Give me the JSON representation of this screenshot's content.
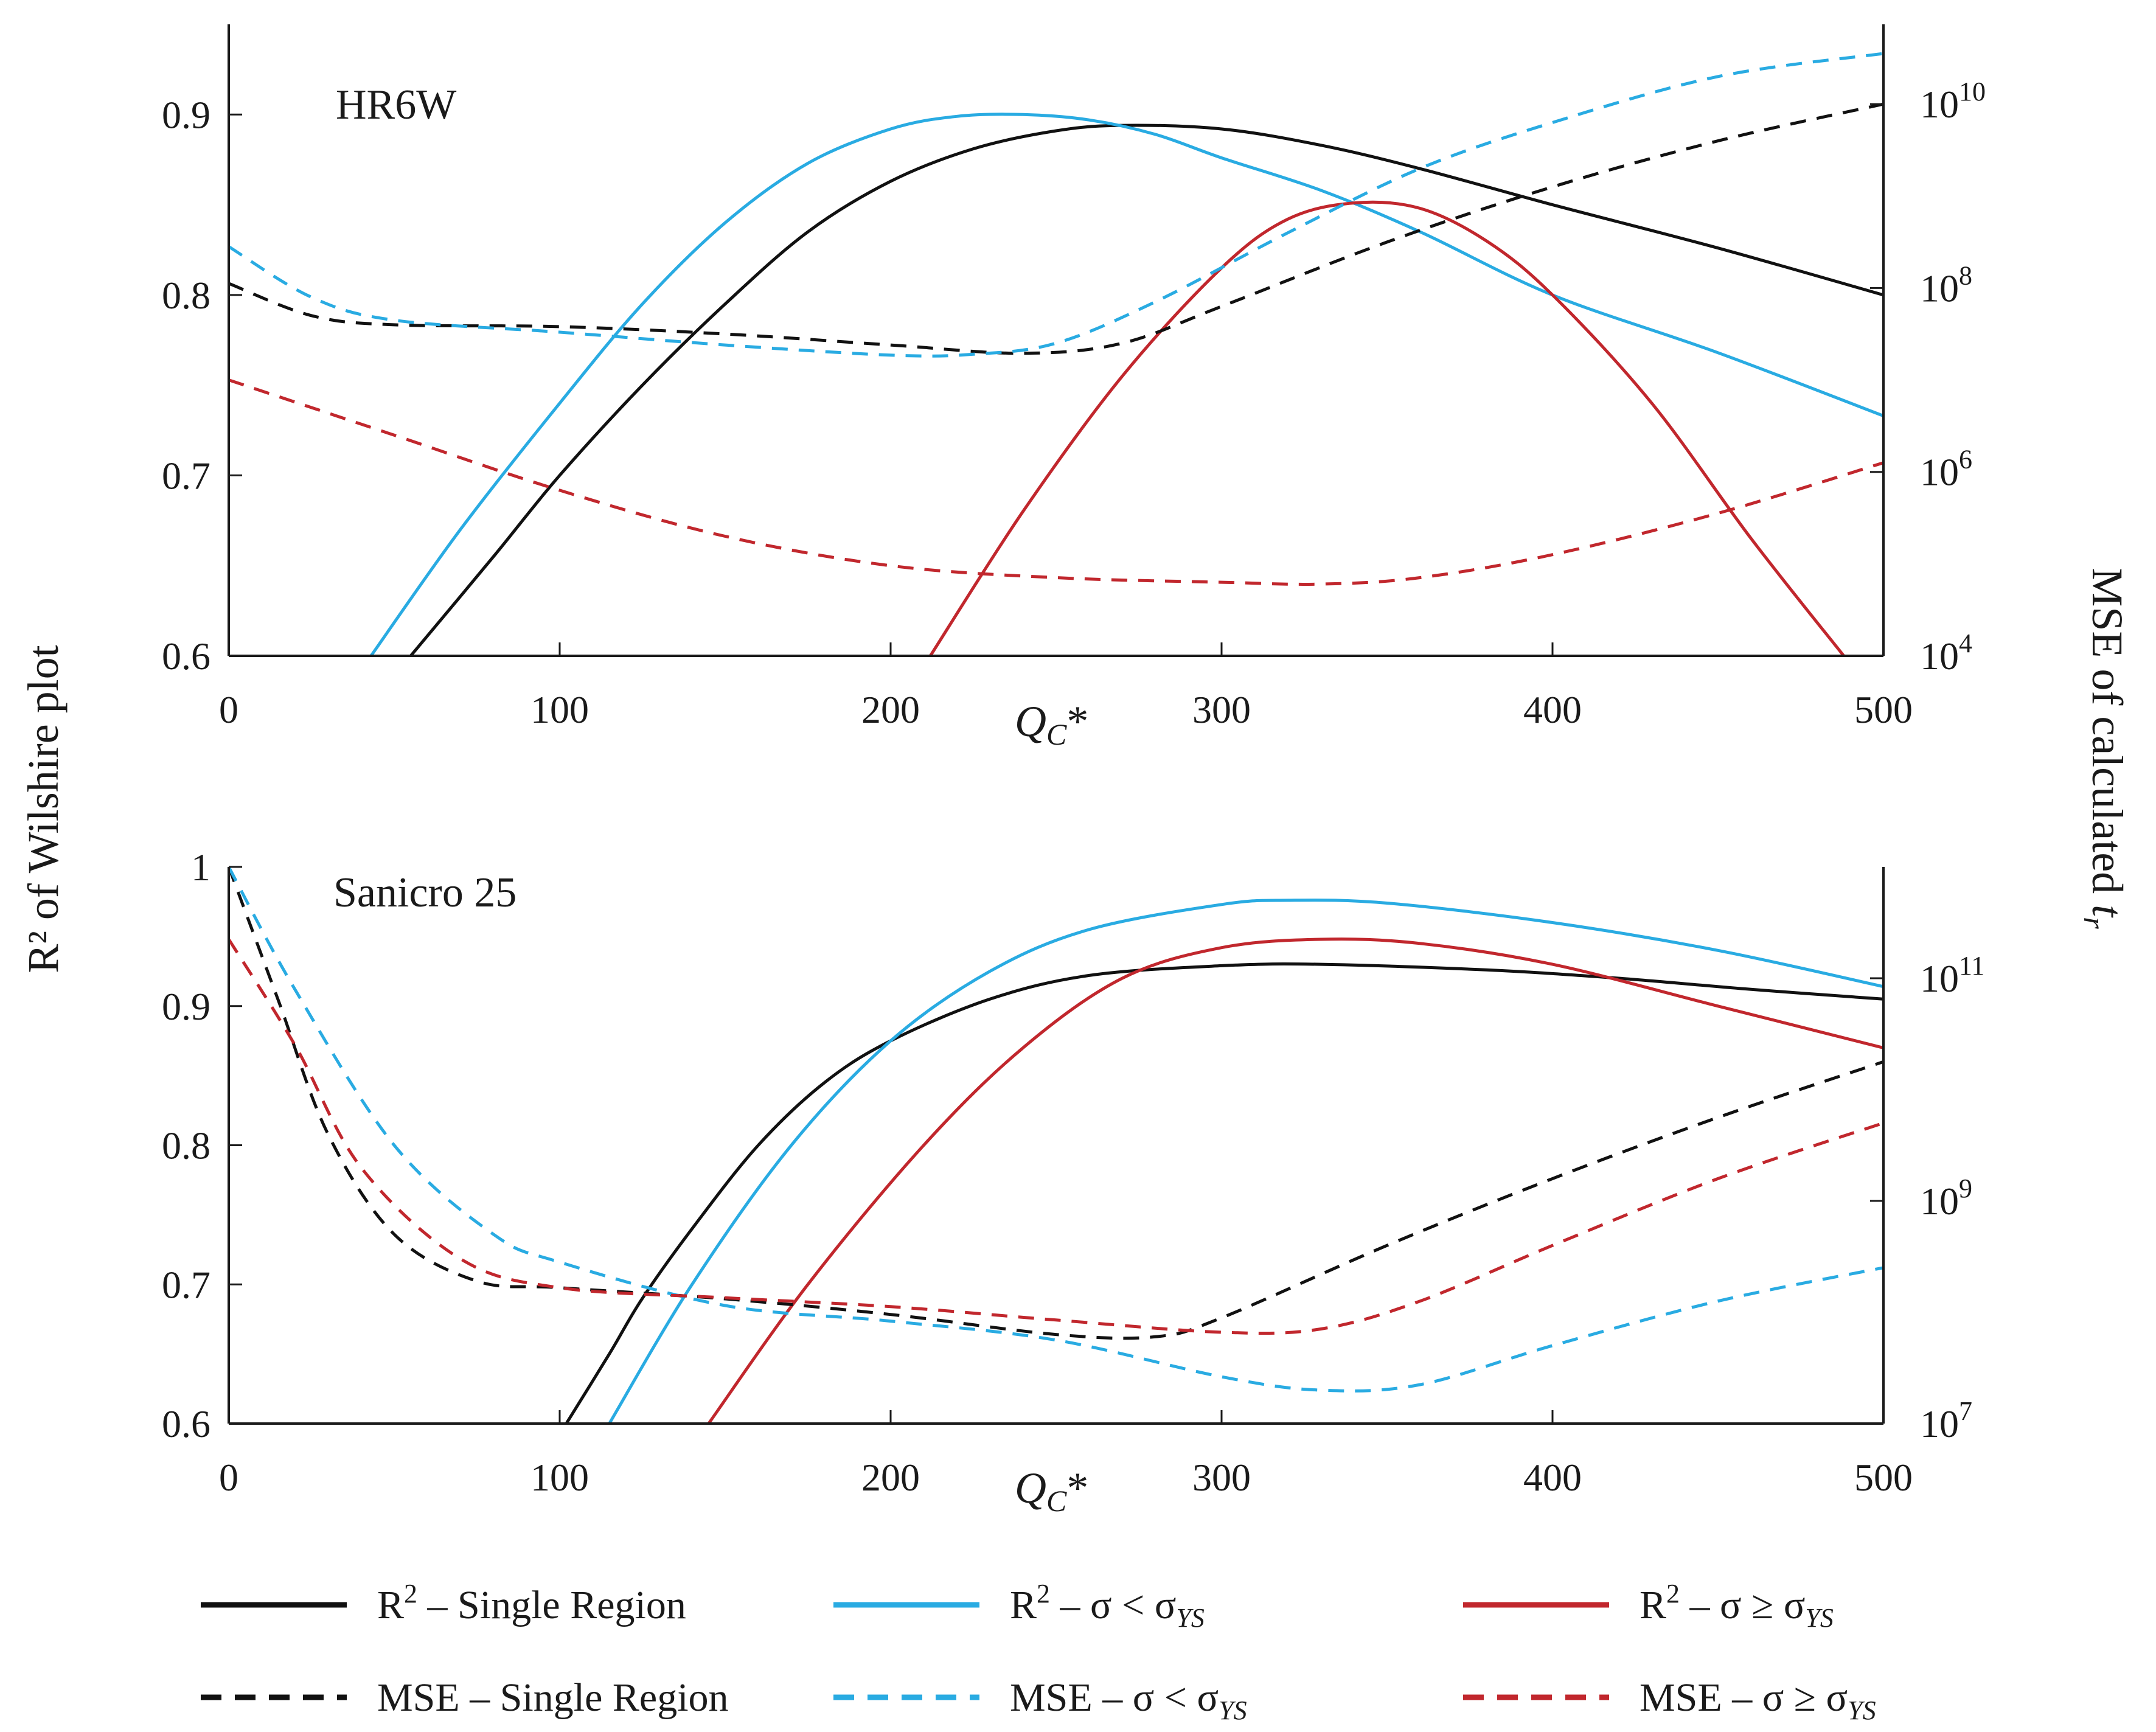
{
  "colors": {
    "black": "#111111",
    "blue": "#29abe2",
    "red": "#c1272d"
  },
  "shared": {
    "ylabel_left": "R² of Wilshire plot",
    "ylabel_right_prefix": "MSE of calculated ",
    "ylabel_right_var": "t",
    "ylabel_right_sub": "r",
    "xlabel_main": "Q",
    "xlabel_sub": "C",
    "xlabel_suffix": "*"
  },
  "legend": [
    {
      "series": "r2_single",
      "parts": [
        "R",
        "2",
        " – Single Region"
      ],
      "dashed": false,
      "color": "black"
    },
    {
      "series": "r2_below",
      "parts": [
        "R",
        "2",
        " – σ < σ",
        "YS"
      ],
      "dashed": false,
      "color": "blue"
    },
    {
      "series": "r2_above",
      "parts": [
        "R",
        "2",
        " – σ ≥ σ",
        "YS"
      ],
      "dashed": false,
      "color": "red"
    },
    {
      "series": "mse_single",
      "parts": [
        "MSE – Single Region"
      ],
      "dashed": true,
      "color": "black"
    },
    {
      "series": "mse_below",
      "parts": [
        "MSE – σ < σ",
        "YS"
      ],
      "dashed": true,
      "color": "blue"
    },
    {
      "series": "mse_above",
      "parts": [
        "MSE – σ ≥ σ",
        "YS"
      ],
      "dashed": true,
      "color": "red"
    }
  ],
  "chart_data": [
    {
      "type": "line",
      "title": "HR6W",
      "x_ticks": [
        "0",
        "100",
        "200",
        "300",
        "400",
        "500"
      ],
      "xlim": [
        0,
        500
      ],
      "ylim_left": [
        0.6,
        0.95
      ],
      "y_ticks_left": [
        "0.6",
        "0.7",
        "0.8",
        "0.9"
      ],
      "y_tick_values_left": [
        0.6,
        0.7,
        0.8,
        0.9
      ],
      "ylim_right_log10": [
        4,
        11
      ],
      "y_ticks_right": [
        {
          "base": "10",
          "exp": "4"
        },
        {
          "base": "10",
          "exp": "6"
        },
        {
          "base": "10",
          "exp": "8"
        },
        {
          "base": "10",
          "exp": "10"
        }
      ],
      "y_tick_values_right_log10": [
        4,
        6,
        8,
        10
      ],
      "series": [
        {
          "id": "r2_single",
          "name": "R² – Single Region",
          "axis": "left",
          "color": "black",
          "dashed": false,
          "points": [
            [
              55,
              0.6
            ],
            [
              80,
              0.655
            ],
            [
              100,
              0.7
            ],
            [
              125,
              0.75
            ],
            [
              150,
              0.795
            ],
            [
              175,
              0.835
            ],
            [
              200,
              0.863
            ],
            [
              225,
              0.881
            ],
            [
              250,
              0.891
            ],
            [
              270,
              0.894
            ],
            [
              300,
              0.892
            ],
            [
              330,
              0.883
            ],
            [
              360,
              0.87
            ],
            [
              400,
              0.85
            ],
            [
              450,
              0.826
            ],
            [
              500,
              0.8
            ]
          ]
        },
        {
          "id": "r2_below",
          "name": "R² – σ < σ_YS",
          "axis": "left",
          "color": "blue",
          "dashed": false,
          "points": [
            [
              43,
              0.6
            ],
            [
              70,
              0.67
            ],
            [
              100,
              0.74
            ],
            [
              125,
              0.795
            ],
            [
              150,
              0.84
            ],
            [
              175,
              0.873
            ],
            [
              200,
              0.892
            ],
            [
              220,
              0.899
            ],
            [
              240,
              0.9
            ],
            [
              260,
              0.897
            ],
            [
              280,
              0.889
            ],
            [
              300,
              0.876
            ],
            [
              330,
              0.858
            ],
            [
              360,
              0.835
            ],
            [
              400,
              0.8
            ],
            [
              450,
              0.768
            ],
            [
              500,
              0.733
            ]
          ]
        },
        {
          "id": "r2_above",
          "name": "R² – σ ≥ σ_YS",
          "axis": "left",
          "color": "red",
          "dashed": false,
          "points": [
            [
              212,
              0.6
            ],
            [
              240,
              0.68
            ],
            [
              270,
              0.755
            ],
            [
              300,
              0.815
            ],
            [
              320,
              0.842
            ],
            [
              340,
              0.851
            ],
            [
              360,
              0.848
            ],
            [
              380,
              0.83
            ],
            [
              400,
              0.8
            ],
            [
              430,
              0.74
            ],
            [
              460,
              0.665
            ],
            [
              488,
              0.6
            ]
          ]
        },
        {
          "id": "mse_single",
          "name": "MSE – Single Region",
          "axis": "right",
          "color": "black",
          "dashed": true,
          "points": [
            [
              0,
              8.05
            ],
            [
              25,
              7.7
            ],
            [
              50,
              7.6
            ],
            [
              100,
              7.58
            ],
            [
              150,
              7.5
            ],
            [
              200,
              7.38
            ],
            [
              240,
              7.29
            ],
            [
              270,
              7.4
            ],
            [
              300,
              7.8
            ],
            [
              350,
              8.5
            ],
            [
              400,
              9.1
            ],
            [
              450,
              9.6
            ],
            [
              500,
              10.0
            ]
          ]
        },
        {
          "id": "mse_below",
          "name": "MSE – σ < σ_YS",
          "axis": "right",
          "color": "blue",
          "dashed": true,
          "points": [
            [
              0,
              8.45
            ],
            [
              25,
              7.9
            ],
            [
              50,
              7.65
            ],
            [
              100,
              7.52
            ],
            [
              150,
              7.38
            ],
            [
              200,
              7.27
            ],
            [
              225,
              7.28
            ],
            [
              250,
              7.4
            ],
            [
              280,
              7.85
            ],
            [
              320,
              8.6
            ],
            [
              360,
              9.3
            ],
            [
              400,
              9.8
            ],
            [
              450,
              10.3
            ],
            [
              500,
              10.55
            ]
          ]
        },
        {
          "id": "mse_above",
          "name": "MSE – σ ≥ σ_YS",
          "axis": "right",
          "color": "red",
          "dashed": true,
          "points": [
            [
              0,
              7.0
            ],
            [
              50,
              6.4
            ],
            [
              100,
              5.8
            ],
            [
              150,
              5.3
            ],
            [
              200,
              4.98
            ],
            [
              250,
              4.85
            ],
            [
              300,
              4.8
            ],
            [
              330,
              4.78
            ],
            [
              360,
              4.85
            ],
            [
              400,
              5.1
            ],
            [
              450,
              5.55
            ],
            [
              500,
              6.1
            ]
          ]
        }
      ]
    },
    {
      "type": "line",
      "title": "Sanicro 25",
      "x_ticks": [
        "0",
        "100",
        "200",
        "300",
        "400",
        "500"
      ],
      "xlim": [
        0,
        500
      ],
      "ylim_left": [
        0.6,
        1.0
      ],
      "y_ticks_left": [
        "0.6",
        "0.7",
        "0.8",
        "0.9",
        "1"
      ],
      "y_tick_values_left": [
        0.6,
        0.7,
        0.8,
        0.9,
        1.0
      ],
      "ylim_right_log10": [
        7,
        12
      ],
      "y_ticks_right": [
        {
          "base": "10",
          "exp": "7"
        },
        {
          "base": "10",
          "exp": "9"
        },
        {
          "base": "10",
          "exp": "11"
        }
      ],
      "y_tick_values_right_log10": [
        7,
        9,
        11
      ],
      "series": [
        {
          "id": "r2_single",
          "name": "R² – Single Region",
          "axis": "left",
          "color": "black",
          "dashed": false,
          "points": [
            [
              102,
              0.6
            ],
            [
              115,
              0.65
            ],
            [
              125,
              0.69
            ],
            [
              140,
              0.74
            ],
            [
              160,
              0.8
            ],
            [
              180,
              0.845
            ],
            [
              200,
              0.875
            ],
            [
              230,
              0.905
            ],
            [
              260,
              0.922
            ],
            [
              300,
              0.929
            ],
            [
              330,
              0.93
            ],
            [
              380,
              0.926
            ],
            [
              420,
              0.92
            ],
            [
              460,
              0.912
            ],
            [
              500,
              0.905
            ]
          ]
        },
        {
          "id": "r2_below",
          "name": "R² – σ < σ_YS",
          "axis": "left",
          "color": "blue",
          "dashed": false,
          "points": [
            [
              115,
              0.6
            ],
            [
              140,
              0.7
            ],
            [
              170,
              0.8
            ],
            [
              200,
              0.875
            ],
            [
              230,
              0.925
            ],
            [
              260,
              0.955
            ],
            [
              300,
              0.973
            ],
            [
              320,
              0.976
            ],
            [
              350,
              0.974
            ],
            [
              400,
              0.96
            ],
            [
              450,
              0.94
            ],
            [
              500,
              0.914
            ]
          ]
        },
        {
          "id": "r2_above",
          "name": "R² – σ ≥ σ_YS",
          "axis": "left",
          "color": "red",
          "dashed": false,
          "points": [
            [
              145,
              0.6
            ],
            [
              175,
              0.7
            ],
            [
              210,
              0.8
            ],
            [
              240,
              0.87
            ],
            [
              270,
              0.92
            ],
            [
              300,
              0.942
            ],
            [
              330,
              0.948
            ],
            [
              360,
              0.945
            ],
            [
              400,
              0.93
            ],
            [
              450,
              0.9
            ],
            [
              500,
              0.87
            ]
          ]
        },
        {
          "id": "mse_single",
          "name": "MSE – Single Region",
          "axis": "right",
          "color": "black",
          "dashed": true,
          "points": [
            [
              0,
              12.0
            ],
            [
              15,
              10.8
            ],
            [
              30,
              9.6
            ],
            [
              50,
              8.7
            ],
            [
              75,
              8.28
            ],
            [
              100,
              8.22
            ],
            [
              150,
              8.12
            ],
            [
              200,
              7.98
            ],
            [
              250,
              7.8
            ],
            [
              280,
              7.78
            ],
            [
              300,
              7.95
            ],
            [
              350,
              8.6
            ],
            [
              400,
              9.2
            ],
            [
              450,
              9.75
            ],
            [
              500,
              10.25
            ]
          ]
        },
        {
          "id": "mse_below",
          "name": "MSE – σ < σ_YS",
          "axis": "right",
          "color": "blue",
          "dashed": true,
          "points": [
            [
              0,
              12.0
            ],
            [
              20,
              10.9
            ],
            [
              50,
              9.5
            ],
            [
              80,
              8.7
            ],
            [
              100,
              8.45
            ],
            [
              150,
              8.06
            ],
            [
              200,
              7.92
            ],
            [
              250,
              7.75
            ],
            [
              300,
              7.42
            ],
            [
              330,
              7.3
            ],
            [
              360,
              7.35
            ],
            [
              400,
              7.7
            ],
            [
              450,
              8.1
            ],
            [
              500,
              8.4
            ]
          ]
        },
        {
          "id": "mse_above",
          "name": "MSE – σ ≥ σ_YS",
          "axis": "right",
          "color": "red",
          "dashed": true,
          "points": [
            [
              0,
              11.35
            ],
            [
              20,
              10.4
            ],
            [
              40,
              9.3
            ],
            [
              70,
              8.48
            ],
            [
              100,
              8.22
            ],
            [
              150,
              8.13
            ],
            [
              200,
              8.05
            ],
            [
              250,
              7.93
            ],
            [
              300,
              7.82
            ],
            [
              330,
              7.85
            ],
            [
              360,
              8.1
            ],
            [
              400,
              8.6
            ],
            [
              450,
              9.2
            ],
            [
              500,
              9.7
            ]
          ]
        }
      ]
    }
  ]
}
